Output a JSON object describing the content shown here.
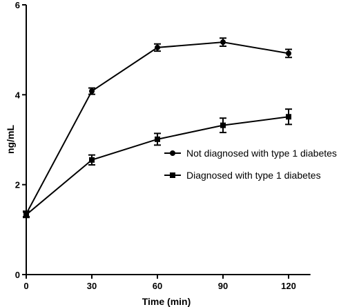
{
  "chart_data": {
    "type": "line",
    "title": "",
    "xlabel": "Time (min)",
    "ylabel": "ng/mL",
    "x": [
      0,
      30,
      60,
      90,
      120
    ],
    "xticks": [
      "0",
      "30",
      "60",
      "90",
      "120"
    ],
    "yticks": [
      "0",
      "2",
      "4",
      "6"
    ],
    "xlim": [
      0,
      130
    ],
    "ylim": [
      0,
      6
    ],
    "grid": false,
    "legend_position": "right",
    "series": [
      {
        "name": "Not diagnosed with type 1 diabetes",
        "marker": "circle",
        "color": "#000000",
        "values": [
          1.35,
          4.08,
          5.05,
          5.17,
          4.92
        ],
        "errors": [
          0.06,
          0.07,
          0.08,
          0.09,
          0.09
        ]
      },
      {
        "name": "Diagnosed with type 1 diabetes",
        "marker": "square",
        "color": "#000000",
        "values": [
          1.33,
          2.55,
          3.01,
          3.32,
          3.51
        ],
        "errors": [
          0.06,
          0.11,
          0.13,
          0.16,
          0.17
        ]
      }
    ]
  }
}
